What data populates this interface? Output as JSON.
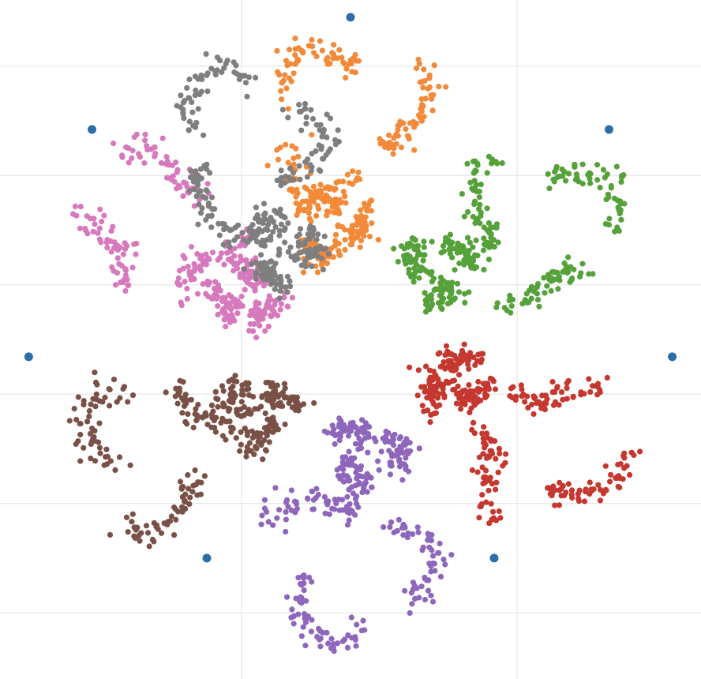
{
  "chart_data": {
    "type": "scatter",
    "title": "",
    "xlabel": "",
    "ylabel": "",
    "xlim": [
      -1.22,
      1.22
    ],
    "ylim": [
      -1.18,
      1.18
    ],
    "grid": true,
    "grid_x": [
      -0.38,
      0.58
    ],
    "grid_y": [
      0.95,
      0.57,
      0.19,
      -0.19,
      -0.57,
      -0.95
    ],
    "legend": "none",
    "cluster_model": {
      "outer_rings": {
        "center_radius": 0.76,
        "radius": 0.3
      },
      "inner_rings": {
        "center_radius": 0.39,
        "radius": 0.12,
        "angle_offset_deg": 8
      },
      "ring_arcs": 3,
      "points_per_arc": 60,
      "jitter": 0.022
    },
    "series": [
      {
        "name": "",
        "color": "#f28a3a",
        "angle_deg": 90
      },
      {
        "name": "",
        "color": "#55a13a",
        "angle_deg": 30
      },
      {
        "name": "",
        "color": "#c5382f",
        "angle_deg": -30
      },
      {
        "name": "",
        "color": "#8e67bd",
        "angle_deg": -90
      },
      {
        "name": "",
        "color": "#7a5147",
        "angle_deg": -150
      },
      {
        "name": "",
        "color": "#d779bd",
        "angle_deg": 150
      },
      {
        "name": "",
        "color": "#7f7f7f",
        "angle_deg": 120
      }
    ],
    "anchor_points": {
      "color": "#2d6ea6",
      "points": [
        [
          0.0,
          1.12
        ],
        [
          0.9,
          0.73
        ],
        [
          1.12,
          -0.06
        ],
        [
          0.5,
          -0.76
        ],
        [
          -0.5,
          -0.76
        ],
        [
          -1.12,
          -0.06
        ],
        [
          -0.9,
          0.73
        ]
      ]
    }
  }
}
